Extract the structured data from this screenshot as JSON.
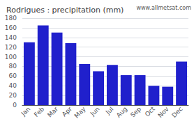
{
  "chart_data": {
    "type": "bar",
    "title": "Rodrigues : precipitation (mm)",
    "categories": [
      "Jan",
      "Feb",
      "Mar",
      "Apr",
      "May",
      "Jun",
      "Jul",
      "Aug",
      "Sep",
      "Oct",
      "Nov",
      "Dec"
    ],
    "values": [
      130,
      165,
      150,
      128,
      85,
      70,
      83,
      62,
      62,
      40,
      38,
      90
    ],
    "color": "#2020cc",
    "ylim": [
      0,
      180
    ],
    "yticks": [
      0,
      20,
      40,
      60,
      80,
      100,
      120,
      140,
      160,
      180
    ],
    "grid": true,
    "annotations": [
      "www.allmetsat.com"
    ]
  }
}
